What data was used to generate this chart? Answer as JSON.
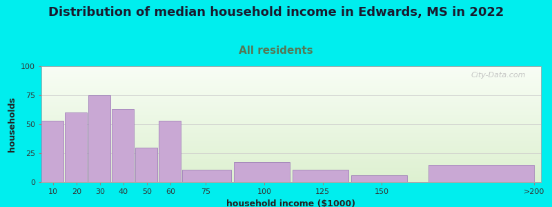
{
  "title": "Distribution of median household income in Edwards, MS in 2022",
  "subtitle": "All residents",
  "xlabel": "household income ($1000)",
  "ylabel": "households",
  "background_color": "#00EEEE",
  "plot_bg_top": "#f5faf0",
  "plot_bg_bottom": "#e8f4e0",
  "bar_color": "#c9a8d4",
  "bar_edge_color": "#a080b8",
  "categories": [
    "10",
    "20",
    "30",
    "40",
    "50",
    "60",
    "75",
    "100",
    "125",
    "150",
    ">200"
  ],
  "values": [
    53,
    60,
    75,
    63,
    30,
    53,
    11,
    17,
    11,
    6,
    15
  ],
  "ylim": [
    0,
    100
  ],
  "yticks": [
    0,
    25,
    50,
    75,
    100
  ],
  "title_fontsize": 13,
  "subtitle_fontsize": 11,
  "axis_label_fontsize": 9,
  "tick_fontsize": 8,
  "watermark": "City-Data.com"
}
